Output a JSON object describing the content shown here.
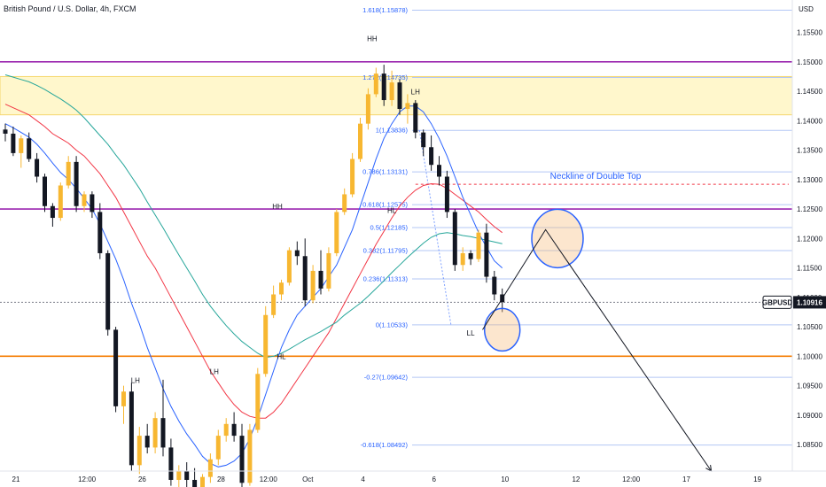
{
  "header": {
    "title": "British Pound / U.S. Dollar, 4h, FXCM"
  },
  "chart_data": {
    "type": "candlestick",
    "y_unit": "USD",
    "ylim": [
      1.0805,
      1.1605
    ],
    "price_ticks": [
      1.155,
      1.15,
      1.145,
      1.14,
      1.135,
      1.13,
      1.125,
      1.12,
      1.115,
      1.11,
      1.105,
      1.1,
      1.095,
      1.09,
      1.085
    ],
    "time_ticks": [
      {
        "label": "21",
        "i": 0
      },
      {
        "label": "12:00",
        "i": 9
      },
      {
        "label": "26",
        "i": 16
      },
      {
        "label": "28",
        "i": 26
      },
      {
        "label": "12:00",
        "i": 32
      },
      {
        "label": "Oct",
        "i": 37
      },
      {
        "label": "4",
        "i": 44
      },
      {
        "label": "6",
        "i": 53
      },
      {
        "label": "10",
        "i": 62
      },
      {
        "label": "12",
        "i": 71
      },
      {
        "label": "12:00",
        "i": 78
      },
      {
        "label": "17",
        "i": 85
      },
      {
        "label": "19",
        "i": 94
      }
    ],
    "current_price": {
      "symbol": "GBPUSD",
      "value": "1.10916",
      "price": 1.10916,
      "color": "#131722"
    },
    "candles": [
      [
        1.1385,
        1.1395,
        1.1365,
        1.1378
      ],
      [
        1.1378,
        1.139,
        1.134,
        1.1345
      ],
      [
        1.1345,
        1.1375,
        1.132,
        1.137
      ],
      [
        1.137,
        1.138,
        1.133,
        1.1335
      ],
      [
        1.1335,
        1.1345,
        1.1295,
        1.1305
      ],
      [
        1.1305,
        1.131,
        1.1245,
        1.1255
      ],
      [
        1.1255,
        1.126,
        1.122,
        1.1235
      ],
      [
        1.1235,
        1.1295,
        1.123,
        1.129
      ],
      [
        1.129,
        1.134,
        1.1285,
        1.133
      ],
      [
        1.133,
        1.134,
        1.1245,
        1.1255
      ],
      [
        1.1255,
        1.128,
        1.1245,
        1.1275
      ],
      [
        1.1275,
        1.128,
        1.1235,
        1.1245
      ],
      [
        1.1245,
        1.126,
        1.1165,
        1.1175
      ],
      [
        1.1175,
        1.118,
        1.1035,
        1.1045
      ],
      [
        1.1045,
        1.105,
        1.0905,
        1.0915
      ],
      [
        1.0915,
        1.095,
        1.0885,
        1.094
      ],
      [
        1.094,
        1.0955,
        1.0805,
        1.0815
      ],
      [
        1.0815,
        1.088,
        1.08,
        1.0865
      ],
      [
        1.0865,
        1.0885,
        1.0835,
        1.0845
      ],
      [
        1.0845,
        1.0905,
        1.0835,
        1.0895
      ],
      [
        1.0895,
        1.096,
        1.083,
        1.0845
      ],
      [
        1.0845,
        1.086,
        1.078,
        1.079
      ],
      [
        1.079,
        1.0815,
        1.077,
        1.0805
      ],
      [
        1.0805,
        1.082,
        1.0775,
        1.079
      ],
      [
        1.079,
        1.081,
        1.076,
        1.0775
      ],
      [
        1.0775,
        1.08,
        1.0765,
        1.0795
      ],
      [
        1.0795,
        1.0835,
        1.0785,
        1.0825
      ],
      [
        1.0825,
        1.0875,
        1.0815,
        1.0865
      ],
      [
        1.0865,
        1.0895,
        1.0855,
        1.0885
      ],
      [
        1.0885,
        1.0905,
        1.0855,
        1.0865
      ],
      [
        1.0865,
        1.0885,
        1.0775,
        1.0785
      ],
      [
        1.0785,
        1.0885,
        1.078,
        1.0875
      ],
      [
        1.0875,
        1.098,
        1.087,
        1.097
      ],
      [
        1.097,
        1.1085,
        1.0965,
        1.107
      ],
      [
        1.107,
        1.112,
        1.1065,
        1.1105
      ],
      [
        1.1105,
        1.113,
        1.1095,
        1.1125
      ],
      [
        1.1125,
        1.1185,
        1.112,
        1.118
      ],
      [
        1.118,
        1.1195,
        1.1155,
        1.117
      ],
      [
        1.117,
        1.12,
        1.1085,
        1.1095
      ],
      [
        1.1095,
        1.1155,
        1.109,
        1.1145
      ],
      [
        1.1145,
        1.118,
        1.1105,
        1.1115
      ],
      [
        1.1115,
        1.1185,
        1.111,
        1.1175
      ],
      [
        1.1175,
        1.125,
        1.117,
        1.1245
      ],
      [
        1.1245,
        1.1285,
        1.124,
        1.1275
      ],
      [
        1.1275,
        1.1345,
        1.127,
        1.1335
      ],
      [
        1.1335,
        1.1405,
        1.133,
        1.1395
      ],
      [
        1.1395,
        1.1455,
        1.1385,
        1.1445
      ],
      [
        1.1445,
        1.149,
        1.144,
        1.148
      ],
      [
        1.148,
        1.1495,
        1.1425,
        1.1435
      ],
      [
        1.1435,
        1.1485,
        1.1425,
        1.1465
      ],
      [
        1.1465,
        1.147,
        1.141,
        1.142
      ],
      [
        1.142,
        1.1445,
        1.1395,
        1.143
      ],
      [
        1.143,
        1.1435,
        1.137,
        1.138
      ],
      [
        1.138,
        1.1385,
        1.134,
        1.1355
      ],
      [
        1.1355,
        1.1375,
        1.1315,
        1.1325
      ],
      [
        1.1325,
        1.134,
        1.129,
        1.1305
      ],
      [
        1.1305,
        1.1315,
        1.1235,
        1.1245
      ],
      [
        1.1245,
        1.125,
        1.1145,
        1.1155
      ],
      [
        1.1155,
        1.1185,
        1.1145,
        1.1175
      ],
      [
        1.1175,
        1.118,
        1.1155,
        1.1165
      ],
      [
        1.1165,
        1.1215,
        1.116,
        1.121
      ],
      [
        1.121,
        1.1225,
        1.1125,
        1.1135
      ],
      [
        1.1135,
        1.1145,
        1.1095,
        1.1105
      ],
      [
        1.1105,
        1.1115,
        1.1075,
        1.1092
      ]
    ],
    "indicators": [
      {
        "color": "#f23645",
        "values": [
          1.1428,
          1.1422,
          1.1416,
          1.141,
          1.14,
          1.139,
          1.1378,
          1.137,
          1.1362,
          1.135,
          1.134,
          1.1325,
          1.131,
          1.129,
          1.127,
          1.1245,
          1.122,
          1.1195,
          1.117,
          1.115,
          1.1125,
          1.11,
          1.1075,
          1.105,
          1.1025,
          1.1,
          1.0975,
          1.0955,
          1.0935,
          1.0918,
          1.0905,
          1.0898,
          1.0895,
          1.0895,
          1.0905,
          1.092,
          1.094,
          1.096,
          1.098,
          1.1,
          1.102,
          1.104,
          1.1065,
          1.109,
          1.1115,
          1.114,
          1.1165,
          1.119,
          1.1212,
          1.1235,
          1.1255,
          1.127,
          1.1282,
          1.129,
          1.1293,
          1.1292,
          1.1285,
          1.1275,
          1.1265,
          1.1255,
          1.1245,
          1.1232,
          1.122,
          1.121
        ]
      },
      {
        "color": "#26a69a",
        "values": [
          1.1478,
          1.1474,
          1.147,
          1.1466,
          1.146,
          1.1453,
          1.1445,
          1.1437,
          1.1428,
          1.1418,
          1.1405,
          1.139,
          1.1375,
          1.136,
          1.1342,
          1.1325,
          1.1305,
          1.1285,
          1.1262,
          1.124,
          1.1218,
          1.1195,
          1.1172,
          1.115,
          1.1128,
          1.1105,
          1.1085,
          1.1068,
          1.1052,
          1.1038,
          1.1025,
          1.1015,
          1.1005,
          1.0998,
          1.1,
          1.1005,
          1.1012,
          1.102,
          1.1028,
          1.1035,
          1.1042,
          1.105,
          1.1058,
          1.107,
          1.108,
          1.109,
          1.1102,
          1.1115,
          1.1128,
          1.1142,
          1.1155,
          1.1168,
          1.118,
          1.1192,
          1.1202,
          1.1208,
          1.121,
          1.1208,
          1.1205,
          1.1203,
          1.12,
          1.1197,
          1.1194,
          1.1191
        ]
      },
      {
        "color": "#2962ff",
        "values": [
          1.1395,
          1.1388,
          1.138,
          1.1372,
          1.136,
          1.1345,
          1.1328,
          1.1312,
          1.13,
          1.1285,
          1.1268,
          1.125,
          1.1225,
          1.1195,
          1.1165,
          1.113,
          1.109,
          1.1055,
          1.1015,
          1.098,
          1.0945,
          1.0915,
          1.089,
          1.0868,
          1.085,
          1.083,
          1.0818,
          1.0812,
          1.0815,
          1.0822,
          1.0835,
          1.086,
          1.0895,
          1.0935,
          1.0975,
          1.1015,
          1.1045,
          1.107,
          1.1085,
          1.11,
          1.1115,
          1.1135,
          1.1155,
          1.1185,
          1.1215,
          1.1255,
          1.1295,
          1.1335,
          1.137,
          1.1395,
          1.1415,
          1.1425,
          1.1425,
          1.1415,
          1.1395,
          1.137,
          1.134,
          1.1305,
          1.127,
          1.124,
          1.121,
          1.1185,
          1.1162,
          1.115
        ]
      }
    ],
    "horizontal_lines": [
      {
        "price": 1.15,
        "color": "#9c27b0"
      },
      {
        "price": 1.125,
        "color": "#9c27b0"
      },
      {
        "price": 1.1,
        "color": "#f57c00"
      }
    ],
    "supply_zone": {
      "top": 1.1475,
      "bottom": 1.141
    },
    "neckline": {
      "price": 1.1292,
      "label": "Neckline of Double Top",
      "color": "#f23645"
    },
    "fib_levels": [
      {
        "label": "1.618(1.15878)",
        "price": 1.15878
      },
      {
        "label": "1.272(1.14735)",
        "price": 1.14735
      },
      {
        "label": "1(1.13836)",
        "price": 1.13836
      },
      {
        "label": "0.786(1.13131)",
        "price": 1.13131
      },
      {
        "label": "0.618(1.12575)",
        "price": 1.12575
      },
      {
        "label": "0.5(1.12185)",
        "price": 1.12185
      },
      {
        "label": "0.382(1.11795)",
        "price": 1.11795
      },
      {
        "label": "0.236(1.11313)",
        "price": 1.11313
      },
      {
        "label": "0(1.10533)",
        "price": 1.10533
      },
      {
        "label": "-0.27(1.09642)",
        "price": 1.09642
      },
      {
        "label": "-0.618(1.08492)",
        "price": 1.08492
      }
    ],
    "structure_labels": [
      {
        "text": "HH",
        "i": 46.5,
        "price": 1.1535
      },
      {
        "text": "LH",
        "i": 52,
        "price": 1.1445
      },
      {
        "text": "HH",
        "i": 34.5,
        "price": 1.125
      },
      {
        "text": "HL",
        "i": 49,
        "price": 1.1243
      },
      {
        "text": "LH",
        "i": 16.5,
        "price": 1.0955
      },
      {
        "text": "LH",
        "i": 26.5,
        "price": 1.097
      },
      {
        "text": "HL",
        "i": 35,
        "price": 1.0995
      },
      {
        "text": "LL",
        "i": 59,
        "price": 1.1035
      }
    ],
    "projection": {
      "points": [
        [
          60.5,
          1.1045
        ],
        [
          68.5,
          1.1215
        ],
        [
          89.5,
          1.0805
        ]
      ],
      "ellipses": [
        {
          "cx_i": 63,
          "cy": 1.1045,
          "rx_px": 20,
          "ry_px": 24
        },
        {
          "cx_i": 70,
          "cy": 1.12,
          "rx_px": 29,
          "ry_px": 33
        }
      ]
    }
  }
}
